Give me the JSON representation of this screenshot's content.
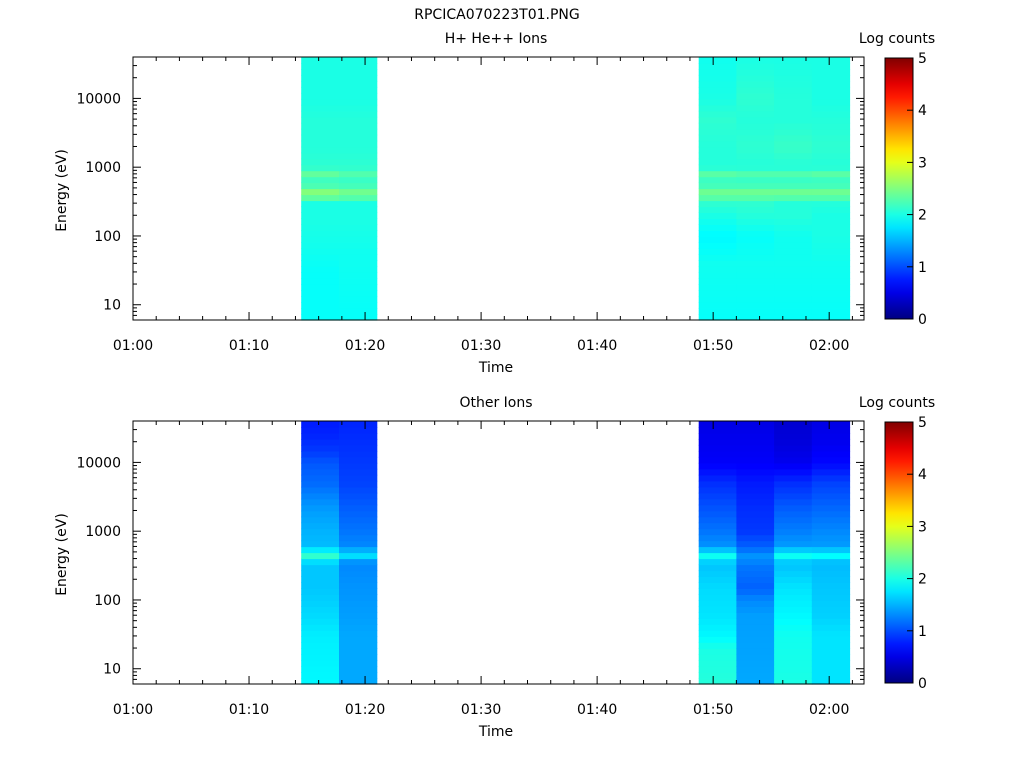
{
  "figure": {
    "title": "RPCICA070223T01.PNG"
  },
  "colors": {
    "axis": "#000000",
    "background": "#ffffff",
    "colormap": "jet"
  },
  "chart_data": [
    {
      "type": "heatmap",
      "title": "H+ He++ Ions",
      "xlabel": "Time",
      "ylabel": "Energy (eV)",
      "colorbar_label": "Log counts",
      "colorbar_range": [
        0,
        5
      ],
      "colorbar_ticks": [
        "0",
        "1",
        "2",
        "3",
        "4",
        "5"
      ],
      "xticks": [
        "01:00",
        "01:10",
        "01:20",
        "01:30",
        "01:40",
        "01:50",
        "02:00"
      ],
      "xrange": [
        "01:00",
        "02:03"
      ],
      "ylog": true,
      "yrange": [
        6,
        40000
      ],
      "yticks": [
        "10",
        "100",
        "1000",
        "10000"
      ],
      "bands": [
        {
          "start": "01:14:30",
          "end": "01:17:45"
        },
        {
          "start": "01:17:45",
          "end": "01:21:00"
        },
        {
          "start": "01:48:45",
          "end": "01:52:00"
        },
        {
          "start": "01:52:00",
          "end": "01:55:15"
        },
        {
          "start": "01:55:15",
          "end": "01:58:30"
        },
        {
          "start": "01:58:30",
          "end": "02:01:45"
        }
      ],
      "profiles": [
        [
          [
            6,
            1.9
          ],
          [
            30,
            1.9
          ],
          [
            60,
            1.95
          ],
          [
            150,
            2.0
          ],
          [
            300,
            2.0
          ],
          [
            420,
            2.6
          ],
          [
            450,
            2.5
          ],
          [
            600,
            2.1
          ],
          [
            850,
            2.4
          ],
          [
            1000,
            2.1
          ],
          [
            2000,
            2.05
          ],
          [
            5000,
            2.05
          ],
          [
            10000,
            2.0
          ],
          [
            40000,
            2.0
          ]
        ],
        [
          [
            6,
            1.9
          ],
          [
            60,
            1.95
          ],
          [
            150,
            2.0
          ],
          [
            300,
            2.0
          ],
          [
            420,
            2.5
          ],
          [
            450,
            2.4
          ],
          [
            600,
            2.1
          ],
          [
            850,
            2.3
          ],
          [
            1000,
            2.1
          ],
          [
            2000,
            2.05
          ],
          [
            5000,
            2.05
          ],
          [
            10000,
            2.0
          ],
          [
            40000,
            2.0
          ]
        ],
        [
          [
            6,
            1.9
          ],
          [
            40,
            1.95
          ],
          [
            100,
            1.85
          ],
          [
            200,
            2.0
          ],
          [
            300,
            2.1
          ],
          [
            420,
            2.45
          ],
          [
            450,
            2.4
          ],
          [
            600,
            2.1
          ],
          [
            850,
            2.35
          ],
          [
            1000,
            2.05
          ],
          [
            2000,
            2.05
          ],
          [
            5000,
            2.1
          ],
          [
            10000,
            2.0
          ],
          [
            40000,
            1.95
          ]
        ],
        [
          [
            6,
            1.9
          ],
          [
            40,
            1.95
          ],
          [
            100,
            1.9
          ],
          [
            200,
            2.05
          ],
          [
            300,
            2.1
          ],
          [
            420,
            2.45
          ],
          [
            450,
            2.4
          ],
          [
            600,
            2.1
          ],
          [
            850,
            2.3
          ],
          [
            1000,
            2.05
          ],
          [
            2000,
            2.1
          ],
          [
            5000,
            2.05
          ],
          [
            10000,
            2.1
          ],
          [
            40000,
            2.0
          ]
        ],
        [
          [
            6,
            1.9
          ],
          [
            40,
            1.95
          ],
          [
            100,
            1.95
          ],
          [
            200,
            2.05
          ],
          [
            300,
            2.05
          ],
          [
            420,
            2.45
          ],
          [
            450,
            2.4
          ],
          [
            600,
            2.1
          ],
          [
            850,
            2.3
          ],
          [
            1000,
            2.05
          ],
          [
            2000,
            2.15
          ],
          [
            5000,
            2.05
          ],
          [
            10000,
            2.05
          ],
          [
            40000,
            2.0
          ]
        ],
        [
          [
            6,
            1.9
          ],
          [
            40,
            1.95
          ],
          [
            100,
            2.0
          ],
          [
            200,
            2.0
          ],
          [
            300,
            2.05
          ],
          [
            420,
            2.45
          ],
          [
            450,
            2.4
          ],
          [
            600,
            2.1
          ],
          [
            850,
            2.35
          ],
          [
            1000,
            2.05
          ],
          [
            2000,
            2.1
          ],
          [
            5000,
            2.05
          ],
          [
            10000,
            2.0
          ],
          [
            40000,
            2.0
          ]
        ]
      ]
    },
    {
      "type": "heatmap",
      "title": "Other Ions",
      "xlabel": "Time",
      "ylabel": "Energy (eV)",
      "colorbar_label": "Log counts",
      "colorbar_range": [
        0,
        5
      ],
      "colorbar_ticks": [
        "0",
        "1",
        "2",
        "3",
        "4",
        "5"
      ],
      "xticks": [
        "01:00",
        "01:10",
        "01:20",
        "01:30",
        "01:40",
        "01:50",
        "02:00"
      ],
      "xrange": [
        "01:00",
        "02:03"
      ],
      "ylog": true,
      "yrange": [
        6,
        40000
      ],
      "yticks": [
        "10",
        "100",
        "1000",
        "10000"
      ],
      "bands": [
        {
          "start": "01:14:30",
          "end": "01:17:45"
        },
        {
          "start": "01:17:45",
          "end": "01:21:00"
        },
        {
          "start": "01:48:45",
          "end": "01:52:00"
        },
        {
          "start": "01:52:00",
          "end": "01:55:15"
        },
        {
          "start": "01:55:15",
          "end": "01:58:30"
        },
        {
          "start": "01:58:30",
          "end": "02:01:45"
        }
      ],
      "profiles": [
        [
          [
            6,
            1.85
          ],
          [
            30,
            1.8
          ],
          [
            60,
            1.7
          ],
          [
            150,
            1.6
          ],
          [
            300,
            1.6
          ],
          [
            420,
            1.8
          ],
          [
            450,
            2.2
          ],
          [
            600,
            1.55
          ],
          [
            1000,
            1.5
          ],
          [
            2000,
            1.4
          ],
          [
            3000,
            1.3
          ],
          [
            5000,
            1.15
          ],
          [
            10000,
            1.05
          ],
          [
            15000,
            0.9
          ],
          [
            25000,
            0.8
          ],
          [
            40000,
            0.75
          ]
        ],
        [
          [
            6,
            1.45
          ],
          [
            30,
            1.45
          ],
          [
            60,
            1.4
          ],
          [
            150,
            1.35
          ],
          [
            300,
            1.3
          ],
          [
            420,
            1.4
          ],
          [
            450,
            1.8
          ],
          [
            600,
            1.3
          ],
          [
            1000,
            1.2
          ],
          [
            2000,
            1.1
          ],
          [
            5000,
            0.95
          ],
          [
            10000,
            0.9
          ],
          [
            20000,
            0.85
          ],
          [
            40000,
            0.8
          ]
        ],
        [
          [
            6,
            2.05
          ],
          [
            20,
            2.0
          ],
          [
            30,
            1.85
          ],
          [
            60,
            1.75
          ],
          [
            150,
            1.7
          ],
          [
            300,
            1.6
          ],
          [
            420,
            1.7
          ],
          [
            450,
            2.0
          ],
          [
            600,
            1.35
          ],
          [
            1000,
            1.2
          ],
          [
            2000,
            1.05
          ],
          [
            5000,
            0.85
          ],
          [
            10000,
            0.6
          ],
          [
            20000,
            0.55
          ],
          [
            40000,
            0.5
          ]
        ],
        [
          [
            6,
            1.45
          ],
          [
            60,
            1.4
          ],
          [
            100,
            1.3
          ],
          [
            150,
            1.1
          ],
          [
            300,
            1.2
          ],
          [
            450,
            1.35
          ],
          [
            600,
            1.1
          ],
          [
            1000,
            0.9
          ],
          [
            2000,
            0.85
          ],
          [
            5000,
            0.75
          ],
          [
            10000,
            0.6
          ],
          [
            20000,
            0.55
          ],
          [
            40000,
            0.5
          ]
        ],
        [
          [
            6,
            2.0
          ],
          [
            30,
            1.95
          ],
          [
            60,
            1.85
          ],
          [
            150,
            1.75
          ],
          [
            300,
            1.6
          ],
          [
            420,
            1.65
          ],
          [
            450,
            2.0
          ],
          [
            600,
            1.4
          ],
          [
            1000,
            1.25
          ],
          [
            2000,
            1.1
          ],
          [
            5000,
            0.85
          ],
          [
            10000,
            0.55
          ],
          [
            20000,
            0.45
          ],
          [
            40000,
            0.4
          ]
        ],
        [
          [
            6,
            1.75
          ],
          [
            30,
            1.75
          ],
          [
            60,
            1.65
          ],
          [
            150,
            1.6
          ],
          [
            300,
            1.55
          ],
          [
            420,
            1.6
          ],
          [
            450,
            1.95
          ],
          [
            600,
            1.4
          ],
          [
            1000,
            1.3
          ],
          [
            2000,
            1.15
          ],
          [
            5000,
            0.95
          ],
          [
            10000,
            0.65
          ],
          [
            20000,
            0.55
          ],
          [
            40000,
            0.5
          ]
        ]
      ]
    }
  ]
}
